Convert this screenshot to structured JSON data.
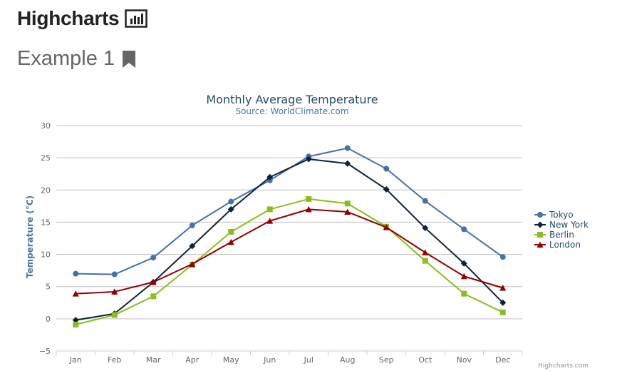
{
  "header": {
    "brand": "Highcharts",
    "brand_icon": "bar-chart-icon",
    "example_title": "Example 1",
    "example_icon": "bookmark-icon"
  },
  "credits": "Highcharts.com",
  "chart_data": {
    "type": "line",
    "title": "Monthly Average Temperature",
    "subtitle": "Source: WorldClimate.com",
    "xlabel": "",
    "ylabel": "Temperature (°C)",
    "categories": [
      "Jan",
      "Feb",
      "Mar",
      "Apr",
      "May",
      "Jun",
      "Jul",
      "Aug",
      "Sep",
      "Oct",
      "Nov",
      "Dec"
    ],
    "ylim": [
      -5,
      30
    ],
    "yticks": [
      -5,
      0,
      5,
      10,
      15,
      20,
      25,
      30
    ],
    "grid": true,
    "legend_position": "right",
    "series": [
      {
        "name": "Tokyo",
        "color": "#4572a7",
        "marker": "circle",
        "values": [
          7.0,
          6.9,
          9.5,
          14.5,
          18.2,
          21.5,
          25.2,
          26.5,
          23.3,
          18.3,
          13.9,
          9.6
        ]
      },
      {
        "name": "New York",
        "color": "#0d233a",
        "marker": "diamond",
        "values": [
          -0.2,
          0.8,
          5.7,
          11.3,
          17.0,
          22.0,
          24.8,
          24.1,
          20.1,
          14.1,
          8.6,
          2.5
        ]
      },
      {
        "name": "Berlin",
        "color": "#8bbc21",
        "marker": "square",
        "values": [
          -0.9,
          0.6,
          3.5,
          8.4,
          13.5,
          17.0,
          18.6,
          17.9,
          14.3,
          9.0,
          3.9,
          1.0
        ]
      },
      {
        "name": "London",
        "color": "#910000",
        "marker": "triangle",
        "values": [
          3.9,
          4.2,
          5.7,
          8.5,
          11.9,
          15.2,
          17.0,
          16.6,
          14.2,
          10.3,
          6.6,
          4.8
        ]
      }
    ]
  }
}
